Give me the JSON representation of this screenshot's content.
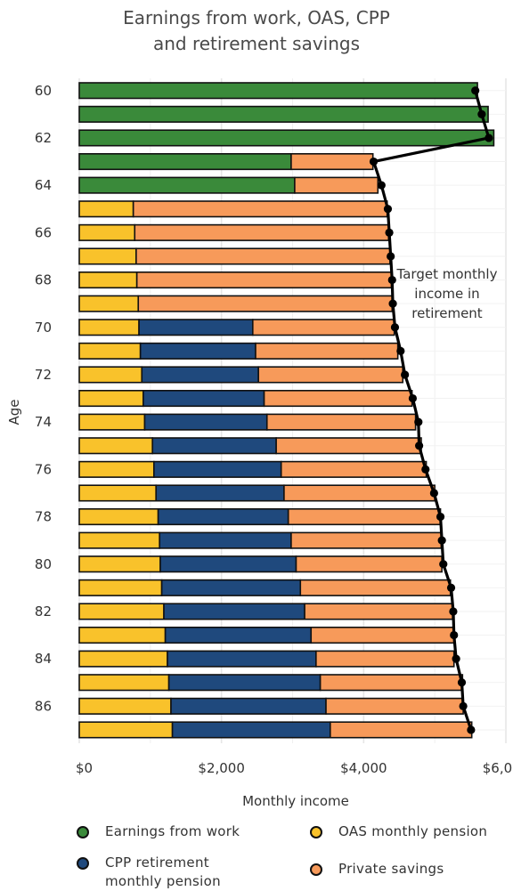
{
  "chart_data": {
    "type": "bar",
    "orientation": "horizontal",
    "stacked": true,
    "title_lines": [
      "Earnings from work, OAS, CPP",
      "and retirement savings"
    ],
    "xlabel": "Monthly income",
    "ylabel": "Age",
    "xlim": [
      0,
      6000
    ],
    "x_ticks": [
      0,
      2000,
      4000,
      6000
    ],
    "x_tick_labels": [
      "$0",
      "$2,000",
      "$4,000",
      "$6,000"
    ],
    "y_tick_labels": [
      "60",
      "62",
      "64",
      "66",
      "68",
      "70",
      "72",
      "74",
      "76",
      "78",
      "80",
      "82",
      "84",
      "86"
    ],
    "ages": [
      60,
      61,
      62,
      63,
      64,
      65,
      66,
      67,
      68,
      69,
      70,
      71,
      72,
      73,
      74,
      75,
      76,
      77,
      78,
      79,
      80,
      81,
      82,
      83,
      84,
      85,
      86,
      87
    ],
    "grid": true,
    "series": [
      {
        "name": "Earnings from work",
        "color": "#3a8a3a",
        "values": [
          5600,
          5750,
          5830,
          2980,
          3030,
          0,
          0,
          0,
          0,
          0,
          0,
          0,
          0,
          0,
          0,
          0,
          0,
          0,
          0,
          0,
          0,
          0,
          0,
          0,
          0,
          0,
          0,
          0
        ]
      },
      {
        "name": "OAS monthly pension",
        "color": "#f9c22b",
        "values": [
          0,
          0,
          0,
          0,
          0,
          760,
          780,
          800,
          810,
          830,
          840,
          860,
          880,
          900,
          920,
          1030,
          1050,
          1080,
          1110,
          1130,
          1140,
          1160,
          1190,
          1210,
          1240,
          1260,
          1290,
          1310
        ]
      },
      {
        "name": "CPP retirement monthly pension",
        "color": "#1f497d",
        "values": [
          0,
          0,
          0,
          0,
          0,
          0,
          0,
          0,
          0,
          0,
          1600,
          1620,
          1640,
          1700,
          1720,
          1740,
          1790,
          1800,
          1830,
          1850,
          1910,
          1950,
          1980,
          2050,
          2090,
          2130,
          2180,
          2220
        ]
      },
      {
        "name": "Private savings",
        "color": "#f79a5a",
        "values": [
          0,
          0,
          0,
          1150,
          1170,
          3570,
          3570,
          3570,
          3580,
          3570,
          1990,
          2000,
          2030,
          2080,
          2090,
          2040,
          2040,
          2120,
          2140,
          2110,
          2050,
          2110,
          2080,
          2010,
          1940,
          2000,
          1930,
          1990
        ]
      }
    ],
    "target_line": {
      "label_lines": [
        "Target monthly",
        "income in",
        "retirement"
      ],
      "values": [
        5570,
        5660,
        5760,
        4140,
        4250,
        4340,
        4360,
        4380,
        4400,
        4410,
        4440,
        4520,
        4580,
        4690,
        4770,
        4780,
        4870,
        4990,
        5080,
        5100,
        5120,
        5230,
        5260,
        5270,
        5300,
        5380,
        5400,
        5510
      ]
    },
    "legend": {
      "position": "bottom",
      "entries": [
        {
          "lines": [
            "Earnings from work"
          ],
          "color": "#3a8a3a"
        },
        {
          "lines": [
            "OAS monthly pension"
          ],
          "color": "#f9c22b"
        },
        {
          "lines": [
            "CPP retirement",
            "monthly pension"
          ],
          "color": "#1f497d"
        },
        {
          "lines": [
            "Private savings"
          ],
          "color": "#f79a5a"
        }
      ]
    }
  }
}
